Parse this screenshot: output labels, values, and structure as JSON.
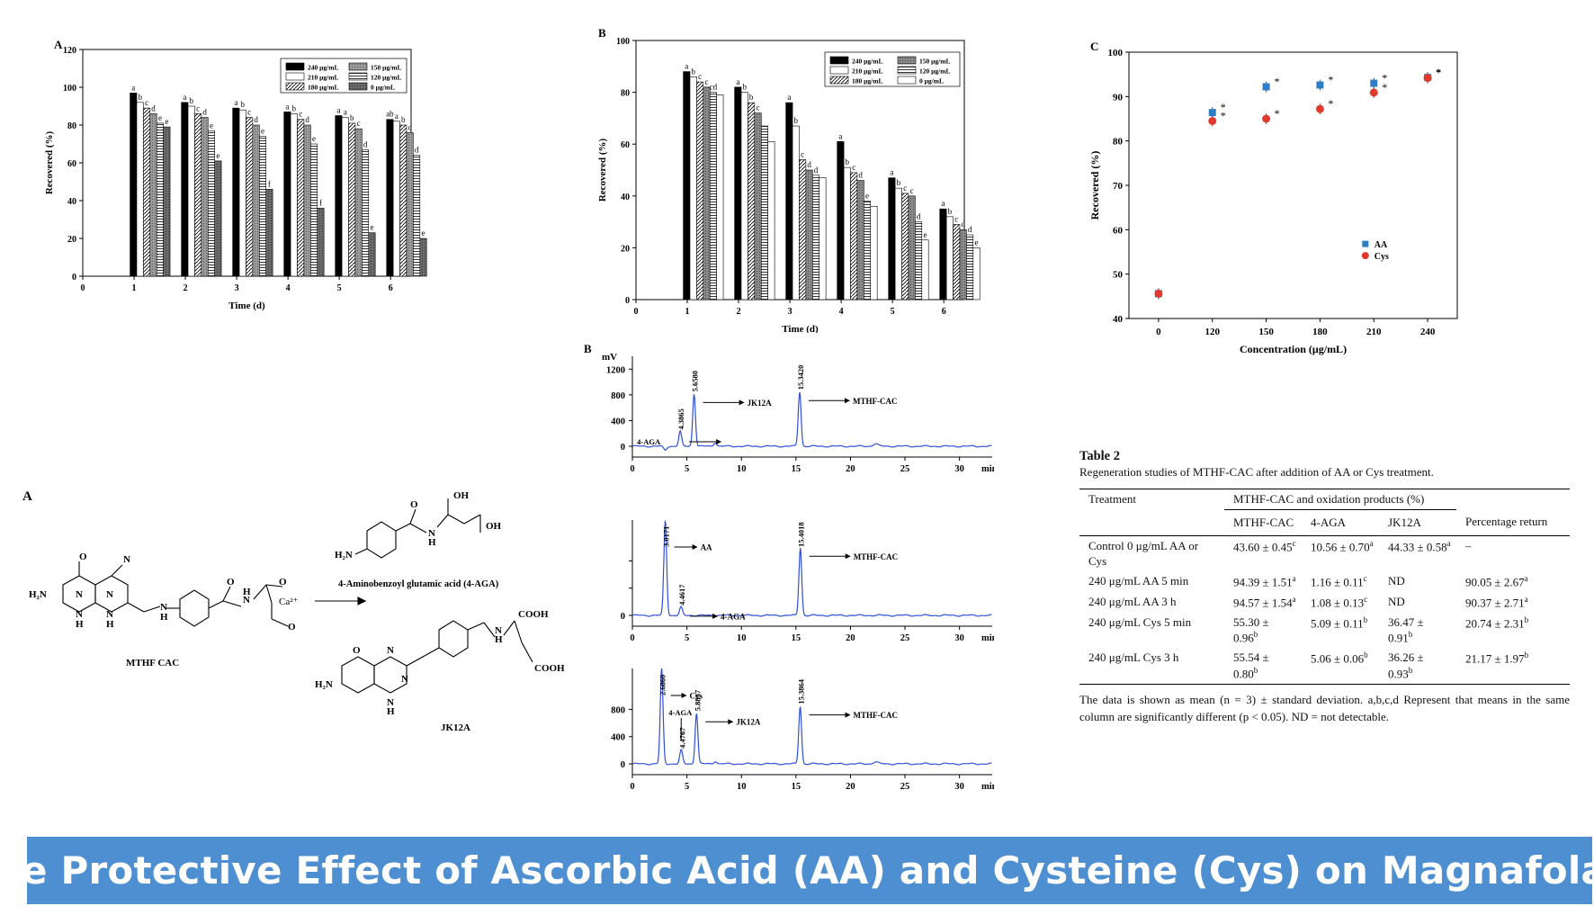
{
  "figA_bar": {
    "panel_label": "A",
    "chart_data": {
      "type": "bar",
      "xlabel": "Time (d)",
      "ylabel": "Recovered (%)",
      "ylim": [
        0,
        120
      ],
      "yticks": [
        0,
        20,
        40,
        60,
        80,
        100,
        120
      ],
      "xticks": [
        "0",
        "1",
        "2",
        "3",
        "4",
        "5",
        "6"
      ],
      "categories": [
        "1",
        "2",
        "3",
        "4",
        "5",
        "6"
      ],
      "series": [
        {
          "name": "240 μg/mL",
          "fill": "black",
          "values": [
            97,
            92,
            89,
            87,
            85,
            83
          ]
        },
        {
          "name": "210 μg/mL",
          "fill": "white",
          "values": [
            92,
            90,
            88,
            86,
            84,
            82
          ]
        },
        {
          "name": "180 μg/mL",
          "fill": "diag",
          "values": [
            89,
            86,
            84,
            83,
            81,
            80
          ]
        },
        {
          "name": "150 μg/mL",
          "fill": "grey",
          "values": [
            86,
            84,
            80,
            80,
            78,
            76
          ]
        },
        {
          "name": "120 μg/mL",
          "fill": "hline",
          "values": [
            81,
            77,
            74,
            70,
            67,
            64
          ]
        },
        {
          "name": "0 μg/mL",
          "fill": "darkgrey",
          "values": [
            79,
            61,
            46,
            36,
            23,
            20
          ]
        }
      ],
      "letters": [
        [
          "a",
          "b",
          "c",
          "d",
          "e",
          "e"
        ],
        [
          "a",
          "b",
          "c",
          "d",
          "e",
          "e"
        ],
        [
          "a",
          "b",
          "c",
          "d",
          "e",
          "f"
        ],
        [
          "a",
          "b",
          "c",
          "d",
          "e",
          "f"
        ],
        [
          "a",
          "a",
          "b",
          "c",
          "d",
          "e"
        ],
        [
          "ab",
          "a",
          "b",
          "c",
          "d",
          "e"
        ]
      ]
    }
  },
  "figB_bar": {
    "panel_label": "B",
    "chart_data": {
      "type": "bar",
      "xlabel": "Time (d)",
      "ylabel": "Recovered (%)",
      "ylim": [
        0,
        100
      ],
      "yticks": [
        0,
        20,
        40,
        60,
        80,
        100
      ],
      "xticks": [
        "0",
        "1",
        "2",
        "3",
        "4",
        "5",
        "6"
      ],
      "categories": [
        "1",
        "2",
        "3",
        "4",
        "5",
        "6"
      ],
      "series": [
        {
          "name": "240 μg/mL",
          "fill": "black",
          "values": [
            88,
            82,
            76,
            61,
            47,
            35
          ]
        },
        {
          "name": "210 μg/mL",
          "fill": "white",
          "values": [
            86,
            80,
            67,
            51,
            43,
            32
          ]
        },
        {
          "name": "180 μg/mL",
          "fill": "diag",
          "values": [
            84,
            76,
            54,
            49,
            41,
            29
          ]
        },
        {
          "name": "150 μg/mL",
          "fill": "grey",
          "values": [
            82,
            72,
            50,
            46,
            40,
            27
          ]
        },
        {
          "name": "120 μg/mL",
          "fill": "hline",
          "values": [
            80,
            67,
            48,
            38,
            30,
            25
          ]
        },
        {
          "name": "0 μg/mL",
          "fill": "white",
          "values": [
            79,
            61,
            47,
            36,
            23,
            20
          ]
        }
      ],
      "letters": [
        [
          "a",
          "b",
          "c",
          "c",
          "cd",
          ""
        ],
        [
          "a",
          "b",
          "b",
          "c",
          "",
          ""
        ],
        [
          "a",
          "b",
          "c",
          "d",
          "d",
          ""
        ],
        [
          "a",
          "b",
          "c",
          "d",
          "e",
          ""
        ],
        [
          "a",
          "b",
          "c",
          "c",
          "d",
          "e"
        ],
        [
          "a",
          "b",
          "c",
          "d",
          "d",
          "e"
        ]
      ]
    }
  },
  "figC_scatter": {
    "panel_label": "C",
    "chart_data": {
      "type": "scatter",
      "xlabel": "Concentration (μg/mL)",
      "ylabel": "Recovered (%)",
      "ylim": [
        40,
        100
      ],
      "yticks": [
        40,
        50,
        60,
        70,
        80,
        90,
        100
      ],
      "x": [
        0,
        120,
        150,
        180,
        210,
        240
      ],
      "series": [
        {
          "name": "AA",
          "color": "#2f7dc4",
          "marker": "square",
          "values": [
            45.6,
            86.4,
            92.2,
            92.6,
            93.0,
            94.3
          ]
        },
        {
          "name": "Cys",
          "color": "#e03a2f",
          "marker": "circle",
          "values": [
            45.6,
            84.5,
            85.0,
            87.2,
            90.9,
            94.2
          ]
        }
      ],
      "star": "*",
      "legend_position": "right"
    }
  },
  "chromatogram": {
    "panel_label": "B",
    "unit": "mV",
    "x_unit": "min",
    "xticks": [
      "0",
      "5",
      "10",
      "15",
      "20",
      "25",
      "30"
    ],
    "trace_color": "#2f4fd6",
    "panels": [
      {
        "yticks": [
          "0",
          "400",
          "800",
          "1200"
        ],
        "peaks": [
          {
            "rt": "4.3865",
            "label": "4-AGA"
          },
          {
            "rt": "5.6580",
            "label": "JK12A"
          },
          {
            "rt": "15.3420",
            "label": "MTHF-CAC"
          }
        ]
      },
      {
        "yticks": [
          "0",
          "",
          ""
        ],
        "peaks": [
          {
            "rt": "3.0171",
            "label": "AA"
          },
          {
            "rt": "4.4617",
            "label": "4-AGA"
          },
          {
            "rt": "15.4018",
            "label": "MTHF-CAC"
          }
        ]
      },
      {
        "yticks": [
          "0",
          "400",
          "800"
        ],
        "peaks": [
          {
            "rt": "2.6860",
            "label": "Cys"
          },
          {
            "rt": "4.4767",
            "label": "4-AGA"
          },
          {
            "rt": "5.8837",
            "label": "JK12A"
          },
          {
            "rt": "15.3864",
            "label": "MTHF-CAC"
          }
        ]
      }
    ]
  },
  "scheme": {
    "panel_label": "A",
    "reactant": "MTHF CAC",
    "ion": "Ca²⁺",
    "product1": "4-Aminobenzoyl glutamic acid (4-AGA)",
    "product2": "JK12A",
    "atoms": {
      "h2n": "H₂N",
      "n": "N",
      "h": "H",
      "o": "O",
      "oh": "OH",
      "cooh": "COOH"
    }
  },
  "table2": {
    "title": "Table 2",
    "caption": "Regeneration studies of MTHF-CAC after addition of AA or Cys treatment.",
    "col_treatment": "Treatment",
    "col_group": "MTHF-CAC and oxidation products (%)",
    "col_mthf": "MTHF-CAC",
    "col_aga": "4-AGA",
    "col_jk": "JK12A",
    "col_pct": "Percentage return",
    "rows": [
      {
        "treatment": "Control 0 μg/mL AA or Cys",
        "mthf": "43.60 ± 0.45",
        "mthf_s": "c",
        "aga": "10.56 ± 0.70",
        "aga_s": "a",
        "jk": "44.33 ± 0.58",
        "jk_s": "a",
        "pct": "–",
        "pct_s": ""
      },
      {
        "treatment": "240 μg/mL AA 5 min",
        "mthf": "94.39 ± 1.51",
        "mthf_s": "a",
        "aga": "1.16 ± 0.11",
        "aga_s": "c",
        "jk": "ND",
        "jk_s": "",
        "pct": "90.05 ± 2.67",
        "pct_s": "a"
      },
      {
        "treatment": "240 μg/mL AA 3 h",
        "mthf": "94.57 ± 1.54",
        "mthf_s": "a",
        "aga": "1.08 ± 0.13",
        "aga_s": "c",
        "jk": "ND",
        "jk_s": "",
        "pct": "90.37 ± 2.71",
        "pct_s": "a"
      },
      {
        "treatment": "240 μg/mL Cys 5 min",
        "mthf": "55.30 ± 0.96",
        "mthf_s": "b",
        "aga": "5.09 ± 0.11",
        "aga_s": "b",
        "jk": "36.47 ± 0.91",
        "jk_s": "b",
        "pct": "20.74 ± 2.31",
        "pct_s": "b"
      },
      {
        "treatment": "240 μg/mL Cys 3 h",
        "mthf": "55.54 ± 0.80",
        "mthf_s": "b",
        "aga": "5.06 ± 0.06",
        "aga_s": "b",
        "jk": "36.26 ± 0.93",
        "jk_s": "b",
        "pct": "21.17 ± 1.97",
        "pct_s": "b"
      }
    ],
    "note": "The data is shown as mean (n = 3) ± standard deviation. a,b,c,d Represent that means in the same column are significantly different (p < 0.05). ND = not detectable."
  },
  "banner": {
    "title": "The Protective Effect of Ascorbic Acid (AA) and Cysteine (Cys) on Magnafolate",
    "bg_color": "#4e8fd1"
  }
}
